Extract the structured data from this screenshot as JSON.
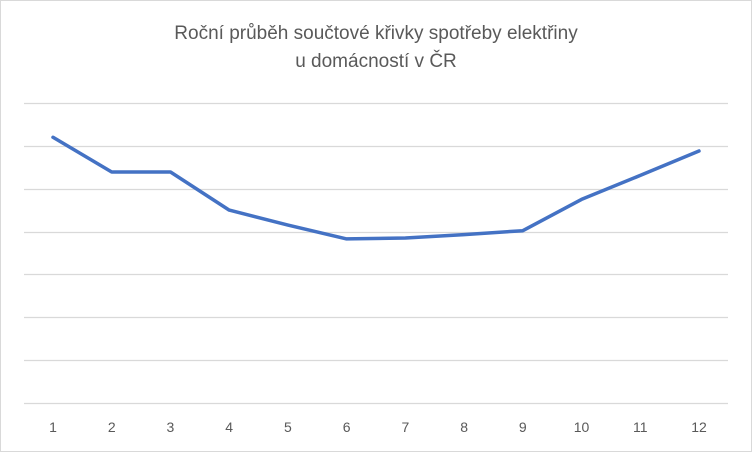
{
  "chart_data": {
    "type": "line",
    "title_lines": [
      "Roční průběh součtové křivky spotřeby elektřiny",
      "u domácností v ČR"
    ],
    "xlabel": "",
    "ylabel": "",
    "categories": [
      "1",
      "2",
      "3",
      "4",
      "5",
      "6",
      "7",
      "8",
      "9",
      "10",
      "11",
      "12"
    ],
    "series": [
      {
        "values": [
          6.2,
          5.39,
          5.39,
          4.5,
          4.15,
          3.83,
          3.85,
          3.93,
          4.02,
          4.75,
          5.31,
          5.88
        ],
        "color": "#4472c4"
      }
    ],
    "ylim": [
      0,
      7
    ],
    "y_tick_labels_shown": false,
    "grid": "horizontal",
    "gridline_color": "#d9d9d9",
    "legend": "none"
  }
}
